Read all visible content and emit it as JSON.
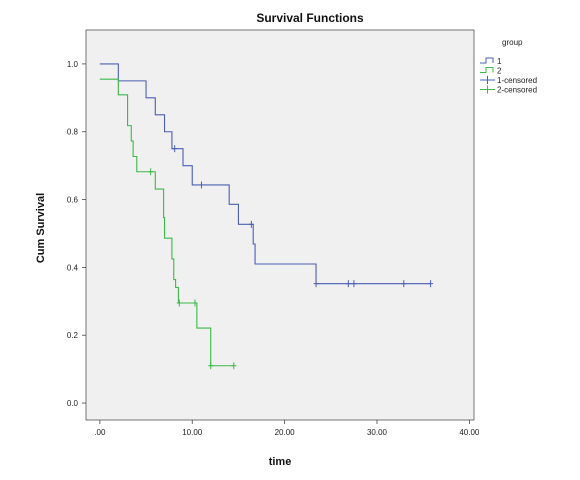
{
  "chart_data": {
    "type": "line",
    "title": "Survival Functions",
    "xlabel": "time",
    "ylabel": "Cum Survival",
    "xlim": [
      -1.5,
      40.5
    ],
    "ylim": [
      -0.05,
      1.1
    ],
    "x_ticks": [
      0,
      10,
      20,
      30,
      40
    ],
    "x_tick_labels": [
      ".00",
      "10.00",
      "20.00",
      "30.00",
      "40.00"
    ],
    "y_ticks": [
      0,
      0.2,
      0.4,
      0.6,
      0.8,
      1.0
    ],
    "y_tick_labels": [
      "0.0",
      "0.2",
      "0.4",
      "0.6",
      "0.8",
      "1.0"
    ],
    "grid": false,
    "background": "#f0f0f0",
    "legend": {
      "title": "group",
      "placement": "right",
      "entries": [
        {
          "label": "1",
          "kind": "step",
          "color": "#4a5fb4"
        },
        {
          "label": "2",
          "kind": "step",
          "color": "#3cb84a"
        },
        {
          "label": "1-censored",
          "kind": "censor",
          "color": "#4a5fb4"
        },
        {
          "label": "2-censored",
          "kind": "censor",
          "color": "#3cb84a"
        }
      ]
    },
    "series": [
      {
        "name": "1",
        "color": "#4a5fb4",
        "steps": [
          [
            0.0,
            1.0
          ],
          [
            2.0,
            0.95
          ],
          [
            5.0,
            0.9
          ],
          [
            6.0,
            0.85
          ],
          [
            7.0,
            0.8
          ],
          [
            7.8,
            0.75
          ],
          [
            9.0,
            0.7
          ],
          [
            10.0,
            0.643
          ],
          [
            14.0,
            0.586
          ],
          [
            15.0,
            0.527
          ],
          [
            16.6,
            0.469
          ],
          [
            16.8,
            0.41
          ],
          [
            23.4,
            0.352
          ]
        ],
        "end_x": 35.8,
        "censored": [
          8.1,
          11.0,
          16.4,
          23.4,
          26.9,
          27.5,
          32.9,
          35.8
        ]
      },
      {
        "name": "2",
        "color": "#3cb84a",
        "steps": [
          [
            0.0,
            0.955
          ],
          [
            2.0,
            0.909
          ],
          [
            3.0,
            0.818
          ],
          [
            3.4,
            0.773
          ],
          [
            3.6,
            0.727
          ],
          [
            4.0,
            0.682
          ],
          [
            6.0,
            0.631
          ],
          [
            6.9,
            0.547
          ],
          [
            7.0,
            0.486
          ],
          [
            7.8,
            0.425
          ],
          [
            8.0,
            0.364
          ],
          [
            8.2,
            0.341
          ],
          [
            8.5,
            0.295
          ],
          [
            10.5,
            0.221
          ],
          [
            12.0,
            0.11
          ]
        ],
        "end_x": 14.5,
        "censored": [
          5.5,
          8.6,
          10.3,
          12.0,
          14.5
        ]
      }
    ]
  }
}
